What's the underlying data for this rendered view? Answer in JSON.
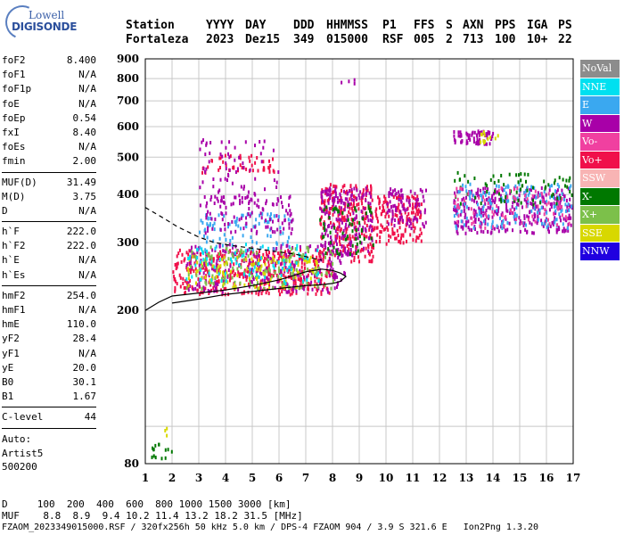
{
  "logo": {
    "line1": "Lowell",
    "line2": "DIGISONDE"
  },
  "header": {
    "labels": [
      "Station",
      "YYYY",
      "DAY",
      "DDD",
      "HHMMSS",
      "P1",
      "FFS",
      "S",
      "AXN",
      "PPS",
      "IGA",
      "PS"
    ],
    "values": [
      "Fortaleza",
      "2023",
      "Dez15",
      "349",
      "015000",
      "RSF",
      "005",
      "2",
      "713",
      "100",
      "10+",
      "22"
    ]
  },
  "params": [
    {
      "name": "foF2",
      "value": "8.400"
    },
    {
      "name": "foF1",
      "value": "N/A"
    },
    {
      "name": "foF1p",
      "value": "N/A"
    },
    {
      "name": "foE",
      "value": "N/A"
    },
    {
      "name": "foEp",
      "value": "0.54"
    },
    {
      "name": "fxI",
      "value": "8.40"
    },
    {
      "name": "foEs",
      "value": "N/A"
    },
    {
      "name": "fmin",
      "value": "2.00"
    },
    {
      "sep": true
    },
    {
      "name": "MUF(D)",
      "value": "31.49"
    },
    {
      "name": "M(D)",
      "value": "3.75"
    },
    {
      "name": "D",
      "value": "N/A"
    },
    {
      "sep": true
    },
    {
      "name": "h`F",
      "value": "222.0"
    },
    {
      "name": "h`F2",
      "value": "222.0"
    },
    {
      "name": "h`E",
      "value": "N/A"
    },
    {
      "name": "h`Es",
      "value": "N/A"
    },
    {
      "sep": true
    },
    {
      "name": "hmF2",
      "value": "254.0"
    },
    {
      "name": "hmF1",
      "value": "N/A"
    },
    {
      "name": "hmE",
      "value": "110.0"
    },
    {
      "name": "yF2",
      "value": "28.4"
    },
    {
      "name": "yF1",
      "value": "N/A"
    },
    {
      "name": "yE",
      "value": "20.0"
    },
    {
      "name": "B0",
      "value": "30.1"
    },
    {
      "name": "B1",
      "value": "1.67"
    },
    {
      "sep": true
    },
    {
      "name": "C-level",
      "value": "44"
    },
    {
      "sep": true
    }
  ],
  "auto": {
    "line1": "Auto:",
    "line2": "Artist5",
    "line3": "500200"
  },
  "legend": [
    {
      "label": "NoVal",
      "color": "#8c8c8c"
    },
    {
      "label": "NNE",
      "color": "#00e0f0"
    },
    {
      "label": "E",
      "color": "#3aa8f0"
    },
    {
      "label": "W",
      "color": "#a800a8"
    },
    {
      "label": "Vo-",
      "color": "#f040a0"
    },
    {
      "label": "Vo+",
      "color": "#f0104a"
    },
    {
      "label": "SSW",
      "color": "#f8b4b4"
    },
    {
      "label": "X-",
      "color": "#007800"
    },
    {
      "label": "X+",
      "color": "#7cc04a"
    },
    {
      "label": "SSE",
      "color": "#d8d800"
    },
    {
      "label": "NNW",
      "color": "#2000e0"
    }
  ],
  "footer": {
    "d_row": "D     100  200  400  600  800 1000 1500 3000 [km]",
    "muf_row": "MUF    8.8  8.9  9.4 10.2 11.4 13.2 18.2 31.5 [MHz]",
    "file_row": "FZAOM_2023349015000.RSF / 320fx256h 50 kHz 5.0 km / DPS-4 FZAOM 904 / 3.9 S 321.6 E   Ion2Png 1.3.20"
  },
  "chart_data": {
    "type": "scatter",
    "title": "",
    "xlabel": "",
    "ylabel": "",
    "xlim": [
      1,
      17
    ],
    "ylim": [
      80,
      900
    ],
    "x_ticks": [
      1,
      2,
      3,
      4,
      5,
      6,
      7,
      8,
      9,
      10,
      11,
      12,
      13,
      14,
      15,
      16,
      17
    ],
    "y_ticks": [
      80,
      200,
      300,
      400,
      500,
      600,
      700,
      800,
      900
    ],
    "y_scale": "log",
    "grid": true,
    "legend_position": "right",
    "clusters": [
      {
        "series": "Vo+",
        "x": [
          2.0,
          8.0
        ],
        "y": [
          222,
          290
        ],
        "n": 420
      },
      {
        "series": "W",
        "x": [
          2.5,
          8.5
        ],
        "y": [
          225,
          300
        ],
        "n": 260
      },
      {
        "series": "X+",
        "x": [
          2.5,
          8.0
        ],
        "y": [
          230,
          295
        ],
        "n": 160
      },
      {
        "series": "SSE",
        "x": [
          2.5,
          7.5
        ],
        "y": [
          230,
          280
        ],
        "n": 100
      },
      {
        "series": "NNE",
        "x": [
          2.5,
          7.5
        ],
        "y": [
          235,
          300
        ],
        "n": 80
      },
      {
        "series": "E",
        "x": [
          3.0,
          6.5
        ],
        "y": [
          290,
          360
        ],
        "n": 90
      },
      {
        "series": "W",
        "x": [
          3.0,
          6.5
        ],
        "y": [
          320,
          400
        ],
        "n": 110
      },
      {
        "series": "Vo+",
        "x": [
          7.5,
          9.5
        ],
        "y": [
          270,
          430
        ],
        "n": 220
      },
      {
        "series": "W",
        "x": [
          7.5,
          9.5
        ],
        "y": [
          280,
          420
        ],
        "n": 180
      },
      {
        "series": "X-",
        "x": [
          7.5,
          9.5
        ],
        "y": [
          280,
          380
        ],
        "n": 60
      },
      {
        "series": "Vo+",
        "x": [
          9.5,
          11.3
        ],
        "y": [
          300,
          400
        ],
        "n": 160
      },
      {
        "series": "W",
        "x": [
          10.0,
          11.5
        ],
        "y": [
          330,
          420
        ],
        "n": 90
      },
      {
        "series": "W",
        "x": [
          12.5,
          17.0
        ],
        "y": [
          320,
          420
        ],
        "n": 330
      },
      {
        "series": "E",
        "x": [
          12.5,
          17.0
        ],
        "y": [
          330,
          430
        ],
        "n": 160
      },
      {
        "series": "X-",
        "x": [
          12.5,
          17.0
        ],
        "y": [
          380,
          460
        ],
        "n": 70
      },
      {
        "series": "Vo-",
        "x": [
          12.5,
          17.0
        ],
        "y": [
          330,
          420
        ],
        "n": 80
      },
      {
        "series": "W",
        "x": [
          12.5,
          14.0
        ],
        "y": [
          545,
          590
        ],
        "n": 70
      },
      {
        "series": "SSE",
        "x": [
          13.5,
          14.2
        ],
        "y": [
          550,
          590
        ],
        "n": 12
      },
      {
        "series": "Vo+",
        "x": [
          3.0,
          5.8
        ],
        "y": [
          460,
          510
        ],
        "n": 50
      },
      {
        "series": "W",
        "x": [
          3.0,
          6.0
        ],
        "y": [
          380,
          560
        ],
        "n": 70
      },
      {
        "series": "W",
        "x": [
          8.3,
          8.8
        ],
        "y": [
          780,
          810
        ],
        "n": 4
      },
      {
        "series": "X-",
        "x": [
          1.2,
          2.0
        ],
        "y": [
          83,
          92
        ],
        "n": 14
      },
      {
        "series": "SSE",
        "x": [
          1.7,
          1.9
        ],
        "y": [
          93,
          100
        ],
        "n": 3
      }
    ],
    "trace_solid": {
      "x": [
        1.0,
        1.5,
        2.0,
        3.0,
        4.0,
        5.0,
        6.0,
        7.0,
        7.6,
        8.0,
        8.3,
        8.5,
        8.3,
        8.0,
        7.5,
        7.0,
        6.0,
        5.0,
        4.0,
        3.0,
        2.2,
        2.0
      ],
      "y": [
        200,
        210,
        218,
        222,
        226,
        232,
        240,
        252,
        256,
        254,
        250,
        245,
        238,
        235,
        233,
        232,
        228,
        224,
        220,
        214,
        210,
        209
      ]
    },
    "trace_dashed": {
      "x": [
        1.0,
        1.6,
        2.2,
        3.0,
        3.6,
        4.2,
        5.0,
        5.8,
        6.6,
        7.2,
        7.6
      ],
      "y": [
        370,
        350,
        330,
        310,
        300,
        295,
        290,
        285,
        280,
        274,
        270
      ]
    }
  }
}
